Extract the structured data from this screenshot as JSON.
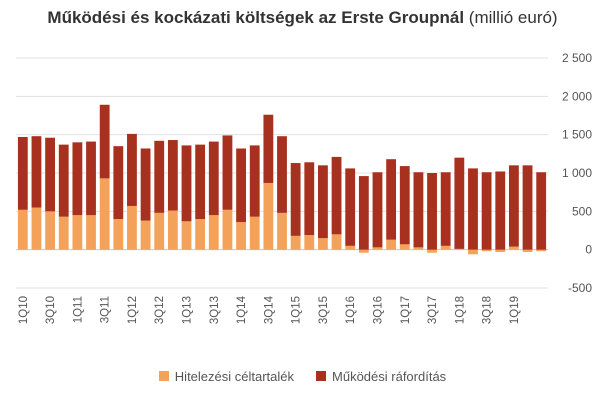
{
  "chart_data": {
    "type": "bar",
    "stacked": true,
    "title": "Működési és kockázati költségek az Erste Groupnál",
    "title_suffix": "(millió euró)",
    "ylim": [
      -500,
      2500
    ],
    "yticks": [
      -500,
      0,
      500,
      1000,
      1500,
      2000,
      2500
    ],
    "ytick_labels": [
      "-500",
      "0",
      "500",
      "1 000",
      "1 500",
      "2 000",
      "2 500"
    ],
    "y_axis_side": "right",
    "grid": true,
    "legend_position": "bottom",
    "categories": [
      "1Q10",
      "2Q10",
      "3Q10",
      "4Q10",
      "1Q11",
      "2Q11",
      "3Q11",
      "4Q11",
      "1Q12",
      "2Q12",
      "3Q12",
      "4Q12",
      "1Q13",
      "2Q13",
      "3Q13",
      "4Q13",
      "1Q14",
      "2Q14",
      "3Q14",
      "4Q14",
      "1Q15",
      "2Q15",
      "3Q15",
      "4Q15",
      "1Q16",
      "2Q16",
      "3Q16",
      "4Q16",
      "1Q17",
      "2Q17",
      "3Q17",
      "4Q17",
      "1Q18",
      "2Q18",
      "3Q18",
      "4Q18",
      "1Q19",
      "2Q19",
      "3Q19"
    ],
    "series": [
      {
        "name": "Hitelezési céltartalék",
        "color": "#f4a259",
        "values": [
          520,
          550,
          500,
          430,
          450,
          450,
          930,
          400,
          570,
          380,
          480,
          510,
          370,
          400,
          450,
          520,
          360,
          430,
          870,
          480,
          180,
          190,
          150,
          200,
          50,
          -40,
          30,
          130,
          70,
          30,
          -40,
          50,
          10,
          -60,
          -20,
          -30,
          40,
          -30,
          -20
        ]
      },
      {
        "name": "Működési ráfordítás",
        "color": "#a8301f",
        "values": [
          950,
          930,
          960,
          940,
          950,
          960,
          960,
          950,
          940,
          940,
          940,
          920,
          990,
          970,
          960,
          970,
          960,
          930,
          890,
          1000,
          950,
          950,
          950,
          1010,
          1010,
          960,
          980,
          1050,
          1020,
          980,
          1000,
          960,
          1190,
          1060,
          1010,
          1020,
          1060,
          1100,
          1010
        ]
      }
    ],
    "xtick_labels_shown": [
      "1Q10",
      "3Q10",
      "1Q11",
      "3Q11",
      "1Q12",
      "3Q12",
      "1Q13",
      "3Q13",
      "1Q14",
      "3Q14",
      "1Q15",
      "3Q15",
      "1Q16",
      "3Q16",
      "1Q17",
      "3Q17",
      "1Q18",
      "3Q18",
      "1Q19"
    ]
  },
  "colors": {
    "axis_text": "#555555",
    "grid": "#e0e0e0",
    "zero_line": "#c8c8c8"
  }
}
